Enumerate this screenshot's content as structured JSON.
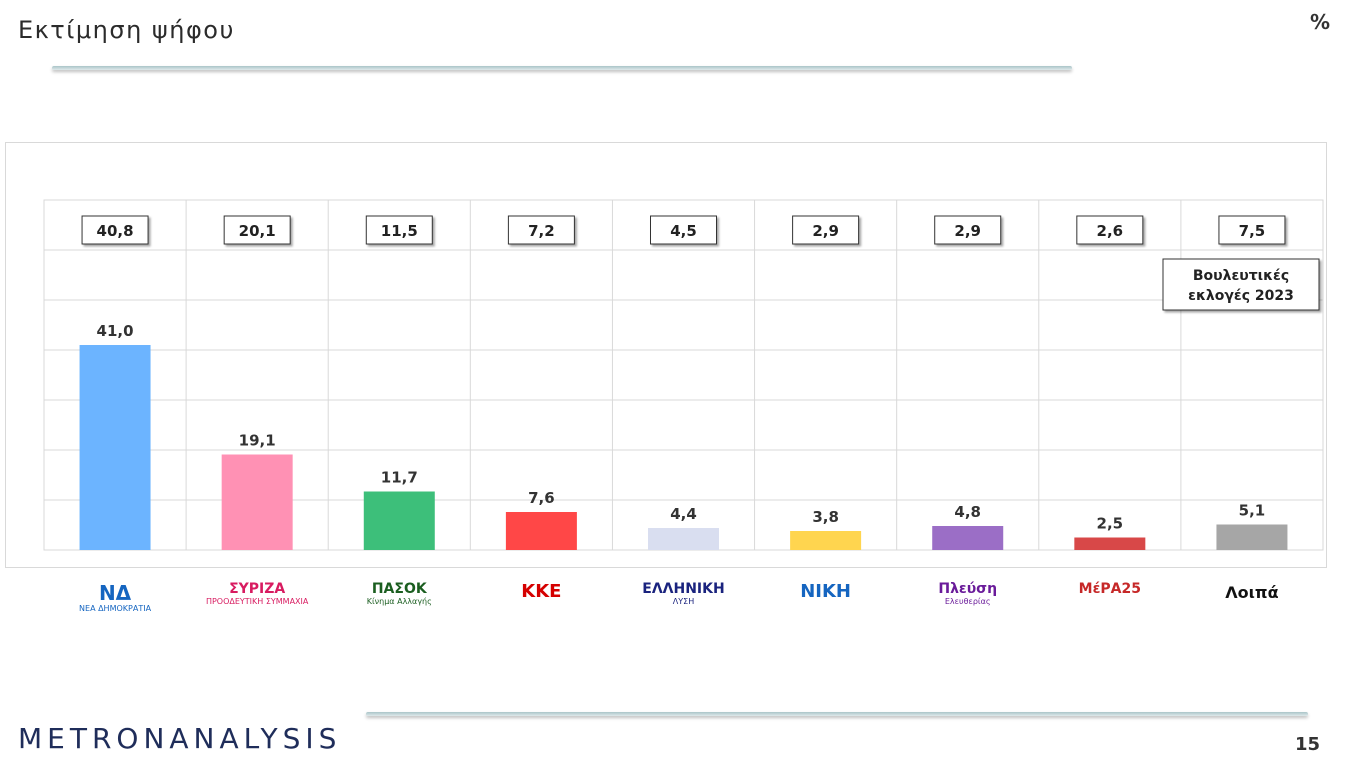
{
  "header": {
    "title": "Εκτίμηση ψήφου",
    "unit": "%"
  },
  "footer": {
    "brand": "METRONANALYSIS",
    "page_number": "15"
  },
  "legend_note": [
    "Βουλευτικές",
    "εκλογές 2023"
  ],
  "logos": [
    {
      "name": "nd-logo",
      "text": "ΝΔ",
      "sub": "ΝΕΑ ΔΗΜΟΚΡΑΤΙΑ",
      "color": "#1565c0"
    },
    {
      "name": "syriza-logo",
      "text": "ΣΥΡΙΖΑ",
      "sub": "ΠΡΟΟΔΕΥΤΙΚΗ ΣΥΜΜΑΧΙΑ",
      "color": "#d81b60"
    },
    {
      "name": "pasok-logo",
      "text": "ΠΑΣΟΚ",
      "sub": "Κίνημα Αλλαγής",
      "color": "#1b5e20"
    },
    {
      "name": "kke-logo",
      "text": "ΚΚΕ",
      "sub": "",
      "color": "#d50000"
    },
    {
      "name": "elliniki-lysi-logo",
      "text": "ΕΛΛΗΝΙΚΗ",
      "sub": "ΛΥΣΗ",
      "color": "#1a237e"
    },
    {
      "name": "niki-logo",
      "text": "ΝΙΚΗ",
      "sub": "",
      "color": "#1565c0"
    },
    {
      "name": "plefsi-logo",
      "text": "Πλεύση",
      "sub": "Ελευθερίας",
      "color": "#6a1b9a"
    },
    {
      "name": "mera25-logo",
      "text": "ΜέΡΑ25",
      "sub": "",
      "color": "#c62828"
    },
    {
      "name": "loipa-label",
      "text": "Λοιπά",
      "sub": "",
      "color": "#111111"
    }
  ],
  "chart_data": {
    "type": "bar",
    "categories": [
      "ΝΔ",
      "ΣΥΡΙΖΑ",
      "ΠΑΣΟΚ",
      "ΚΚΕ",
      "Ελληνική Λύση",
      "ΝΙΚΗ",
      "Πλεύση Ελευθερίας",
      "ΜέΡΑ25",
      "Λοιπά"
    ],
    "series": [
      {
        "name": "",
        "values": [
          41.0,
          19.1,
          11.7,
          7.6,
          4.4,
          3.8,
          4.8,
          2.5,
          5.1
        ],
        "labels": [
          "41,0",
          "19,1",
          "11,7",
          "7,6",
          "4,4",
          "3,8",
          "4,8",
          "2,5",
          "5,1"
        ]
      },
      {
        "name": "Βουλευτικές εκλογές 2023",
        "values": [
          40.8,
          20.1,
          11.5,
          7.2,
          4.5,
          2.9,
          2.9,
          2.6,
          7.5
        ],
        "labels": [
          "40,8",
          "20,1",
          "11,5",
          "7,2",
          "4,5",
          "2,9",
          "2,9",
          "2,6",
          "7,5"
        ]
      }
    ],
    "colors": [
      "#6cb4ff",
      "#ff91b4",
      "#3dbf7a",
      "#ff4747",
      "#d9def0",
      "#ffd54f",
      "#9b6ec6",
      "#d84848",
      "#a6a6a6"
    ],
    "ylim": [
      0,
      70
    ],
    "grid": true
  }
}
